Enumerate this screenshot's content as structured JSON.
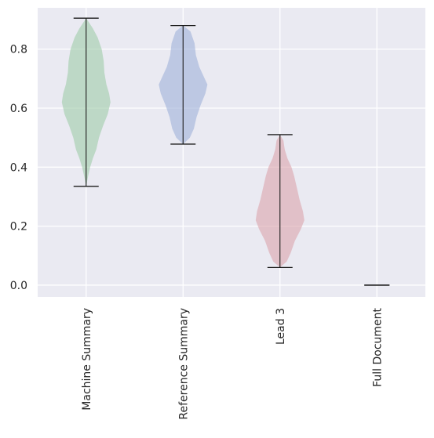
{
  "chart_data": {
    "type": "violin",
    "title": "",
    "xlabel": "",
    "ylabel": "",
    "ylim": [
      -0.04,
      0.94
    ],
    "grid": true,
    "yticks": [
      {
        "value": 0.0,
        "label": "0.0"
      },
      {
        "value": 0.2,
        "label": "0.2"
      },
      {
        "value": 0.4,
        "label": "0.4"
      },
      {
        "value": 0.6,
        "label": "0.6"
      },
      {
        "value": 0.8,
        "label": "0.8"
      }
    ],
    "categories": [
      "Machine Summary",
      "Reference Summary",
      "Lead 3",
      "Full Document"
    ],
    "series": [
      {
        "category": "Machine Summary",
        "min": 0.335,
        "max": 0.905,
        "color": "#9fcca9",
        "density": [
          [
            0.335,
            0.0
          ],
          [
            0.37,
            0.03
          ],
          [
            0.4,
            0.06
          ],
          [
            0.43,
            0.1
          ],
          [
            0.46,
            0.15
          ],
          [
            0.5,
            0.19
          ],
          [
            0.54,
            0.25
          ],
          [
            0.58,
            0.32
          ],
          [
            0.62,
            0.36
          ],
          [
            0.65,
            0.34
          ],
          [
            0.68,
            0.3
          ],
          [
            0.72,
            0.27
          ],
          [
            0.76,
            0.26
          ],
          [
            0.8,
            0.23
          ],
          [
            0.84,
            0.17
          ],
          [
            0.87,
            0.1
          ],
          [
            0.905,
            0.0
          ]
        ]
      },
      {
        "category": "Reference Summary",
        "min": 0.478,
        "max": 0.88,
        "color": "#9eb0d8",
        "density": [
          [
            0.478,
            0.0
          ],
          [
            0.5,
            0.1
          ],
          [
            0.53,
            0.16
          ],
          [
            0.57,
            0.2
          ],
          [
            0.61,
            0.26
          ],
          [
            0.65,
            0.33
          ],
          [
            0.68,
            0.36
          ],
          [
            0.71,
            0.3
          ],
          [
            0.74,
            0.24
          ],
          [
            0.78,
            0.19
          ],
          [
            0.82,
            0.17
          ],
          [
            0.86,
            0.11
          ],
          [
            0.88,
            0.0
          ]
        ]
      },
      {
        "category": "Lead 3",
        "min": 0.06,
        "max": 0.51,
        "color": "#dba3ab",
        "density": [
          [
            0.06,
            0.0
          ],
          [
            0.08,
            0.1
          ],
          [
            0.11,
            0.16
          ],
          [
            0.15,
            0.22
          ],
          [
            0.19,
            0.31
          ],
          [
            0.22,
            0.36
          ],
          [
            0.25,
            0.34
          ],
          [
            0.29,
            0.29
          ],
          [
            0.33,
            0.25
          ],
          [
            0.37,
            0.21
          ],
          [
            0.4,
            0.17
          ],
          [
            0.43,
            0.11
          ],
          [
            0.46,
            0.07
          ],
          [
            0.49,
            0.05
          ],
          [
            0.51,
            0.0
          ]
        ]
      },
      {
        "category": "Full Document",
        "min": 0.0,
        "max": 0.0,
        "color": "#aaaaaa",
        "density": []
      }
    ]
  }
}
